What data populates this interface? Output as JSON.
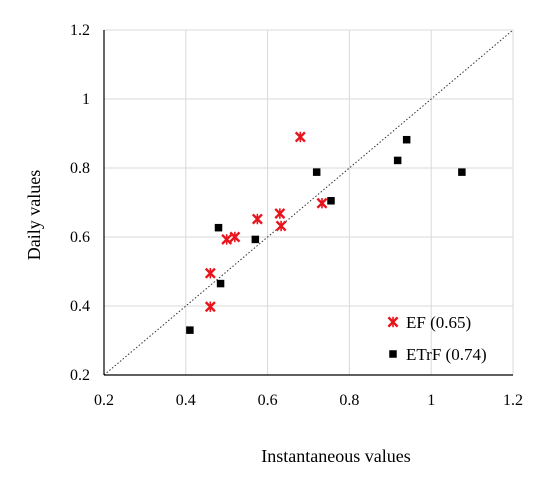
{
  "chart_data": {
    "type": "scatter",
    "title": "",
    "xlabel": "Instantaneous values",
    "ylabel": "Daily values",
    "xlim": [
      0.2,
      1.2
    ],
    "ylim": [
      0.2,
      1.2
    ],
    "xticks": [
      0.2,
      0.4,
      0.6,
      0.8,
      1,
      1.2
    ],
    "yticks": [
      0.2,
      0.4,
      0.6,
      0.8,
      1,
      1.2
    ],
    "xtick_labels": [
      "0.2",
      "0.4",
      "0.6",
      "0.8",
      "1",
      "1.2"
    ],
    "ytick_labels": [
      "0.2",
      "0.4",
      "0.6",
      "0.8",
      "1",
      "1.2"
    ],
    "grid": true,
    "reference_line": "1:1",
    "legend_position": "bottom-right",
    "series": [
      {
        "name": "EF (0.65)",
        "marker": "x-star",
        "color": "#e8141b",
        "points": [
          {
            "x": 0.46,
            "y": 0.495
          },
          {
            "x": 0.46,
            "y": 0.398
          },
          {
            "x": 0.5,
            "y": 0.593
          },
          {
            "x": 0.52,
            "y": 0.6
          },
          {
            "x": 0.575,
            "y": 0.652
          },
          {
            "x": 0.63,
            "y": 0.668
          },
          {
            "x": 0.633,
            "y": 0.632
          },
          {
            "x": 0.68,
            "y": 0.89
          },
          {
            "x": 0.733,
            "y": 0.698
          }
        ]
      },
      {
        "name": "ETrF (0.74)",
        "marker": "square",
        "color": "#000000",
        "points": [
          {
            "x": 0.41,
            "y": 0.33
          },
          {
            "x": 0.48,
            "y": 0.627
          },
          {
            "x": 0.485,
            "y": 0.465
          },
          {
            "x": 0.57,
            "y": 0.593
          },
          {
            "x": 0.72,
            "y": 0.788
          },
          {
            "x": 0.755,
            "y": 0.705
          },
          {
            "x": 0.918,
            "y": 0.822
          },
          {
            "x": 0.94,
            "y": 0.882
          },
          {
            "x": 1.075,
            "y": 0.788
          }
        ]
      }
    ]
  }
}
